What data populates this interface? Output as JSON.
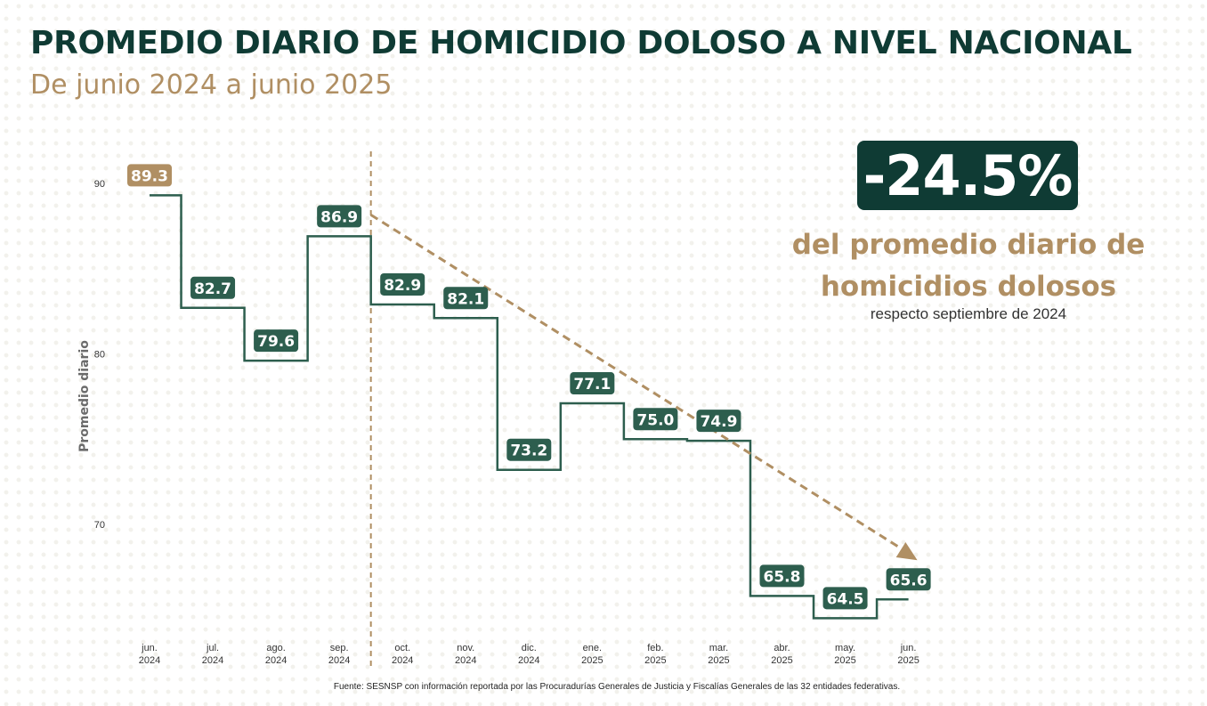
{
  "header": {
    "title": "PROMEDIO DIARIO DE HOMICIDIO DOLOSO A NIVEL NACIONAL",
    "subtitle": "De junio 2024 a junio 2025"
  },
  "highlight": {
    "value": "-24.5%",
    "description_line1": "del promedio diario de",
    "description_line2": "homicidios dolosos",
    "note": "respecto septiembre de 2024"
  },
  "source": "Fuente: SESNSP con información reportada por las Procuradurías Generales de Justicia y Fiscalías Generales de las 32 entidades federativas.",
  "colors": {
    "line": "#2d5e4e",
    "label_bg": "#2d5e4e",
    "accent": "#b08f63",
    "title": "#0f3b34"
  },
  "chart_data": {
    "type": "line",
    "step": true,
    "title": "",
    "xlabel": "",
    "ylabel": "Promedio diario",
    "ylim": [
      64,
      91
    ],
    "yticks": [
      70,
      80,
      90
    ],
    "grid": false,
    "categories": [
      [
        "jun.",
        "2024"
      ],
      [
        "jul.",
        "2024"
      ],
      [
        "ago.",
        "2024"
      ],
      [
        "sep.",
        "2024"
      ],
      [
        "oct.",
        "2024"
      ],
      [
        "nov.",
        "2024"
      ],
      [
        "dic.",
        "2024"
      ],
      [
        "ene.",
        "2025"
      ],
      [
        "feb.",
        "2025"
      ],
      [
        "mar.",
        "2025"
      ],
      [
        "abr.",
        "2025"
      ],
      [
        "may.",
        "2025"
      ],
      [
        "jun.",
        "2025"
      ]
    ],
    "series": [
      {
        "values": [
          89.3,
          82.7,
          79.6,
          86.9,
          82.9,
          82.1,
          73.2,
          77.1,
          75.0,
          74.9,
          65.8,
          64.5,
          65.6
        ],
        "labels": [
          "89.3",
          "82.7",
          "79.6",
          "86.9",
          "82.9",
          "82.1",
          "73.2",
          "77.1",
          "75.0",
          "74.9",
          "65.8",
          "64.5",
          "65.6"
        ]
      }
    ],
    "highlighted_point": 0,
    "reference_line": {
      "between": [
        "sep.",
        "oct."
      ],
      "style": "dashed"
    },
    "trend_arrow": {
      "from": "sep. 2024",
      "to": "jun. 2025",
      "style": "dashed-arrow"
    }
  }
}
